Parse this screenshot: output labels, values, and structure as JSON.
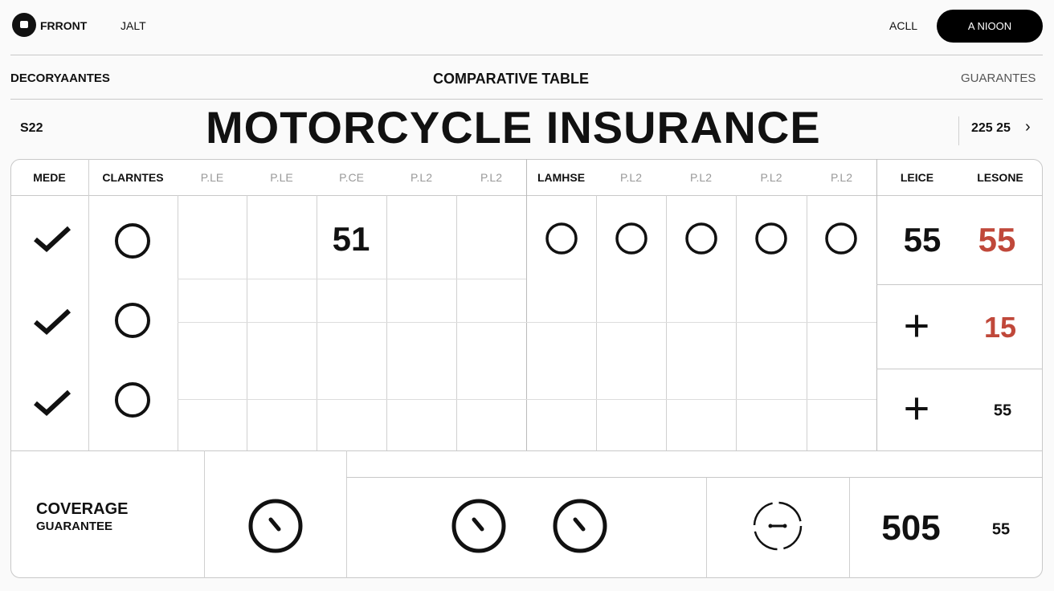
{
  "topbar": {
    "brand": "FRRONT",
    "nav": "JALT",
    "link": "ACLL",
    "button": "A NIOON"
  },
  "subheader": {
    "left": "DECORYAANTES",
    "center": "COMPARATIVE TABLE",
    "right": "GUARANTES"
  },
  "title_row": {
    "left": "S22",
    "title": "MOTORCYCLE INSURANCE",
    "right": "225 25"
  },
  "table": {
    "headers": [
      "MEDE",
      "CLARNTES",
      "P.LE",
      "P.LE",
      "P.CE",
      "P.L2",
      "P.L2",
      "LAMHSE",
      "P.L2",
      "P.L2",
      "P.L2",
      "P.L2",
      "LEICE",
      "LESONE"
    ],
    "center_value": "51",
    "right_values": [
      {
        "a": "55",
        "b": "55"
      },
      {
        "a": "+",
        "b": "15"
      },
      {
        "a": "+",
        "b": "55"
      }
    ],
    "accent_color": "#c0483a"
  },
  "footer": {
    "label": "COVERAGE",
    "sublabel": "GUARANTEE",
    "value": "505",
    "small": "55"
  }
}
